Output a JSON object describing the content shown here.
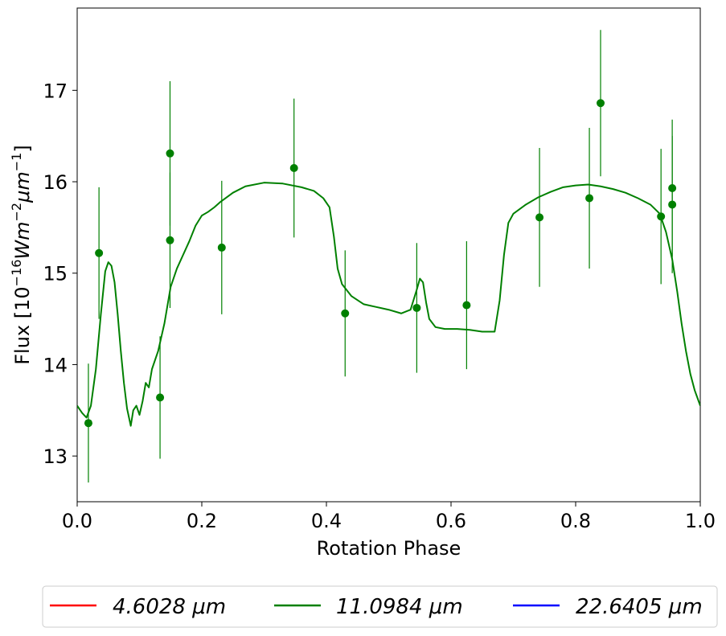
{
  "chart_data": {
    "type": "line",
    "xlabel": "Rotation Phase",
    "ylabel_prefix": "Flux [10",
    "ylabel_exp1": "−16",
    "ylabel_mid": "Wm",
    "ylabel_exp2": "−2",
    "ylabel_mid2": "μm",
    "ylabel_exp3": "−1",
    "ylabel_suffix": "]",
    "xlim": [
      0.0,
      1.0
    ],
    "ylim": [
      12.5,
      17.9
    ],
    "xticks": [
      0.0,
      0.2,
      0.4,
      0.6,
      0.8,
      1.0
    ],
    "xtick_labels": [
      "0.0",
      "0.2",
      "0.4",
      "0.6",
      "0.8",
      "1.0"
    ],
    "yticks": [
      13,
      14,
      15,
      16,
      17
    ],
    "ytick_labels": [
      "13",
      "14",
      "15",
      "16",
      "17"
    ],
    "grid": false,
    "legend_placement": "bottom-center",
    "legend": [
      {
        "label": "4.6028 μm",
        "color": "#ff0000"
      },
      {
        "label": "11.0984 μm",
        "color": "#008000"
      },
      {
        "label": "22.6405 μm",
        "color": "#0000ff"
      }
    ],
    "model_curve": {
      "name": "11.0984 μm",
      "color": "#008000",
      "points": [
        [
          0.0,
          13.55
        ],
        [
          0.008,
          13.47
        ],
        [
          0.015,
          13.42
        ],
        [
          0.022,
          13.55
        ],
        [
          0.03,
          13.95
        ],
        [
          0.038,
          14.55
        ],
        [
          0.045,
          15.02
        ],
        [
          0.05,
          15.12
        ],
        [
          0.055,
          15.08
        ],
        [
          0.06,
          14.9
        ],
        [
          0.065,
          14.55
        ],
        [
          0.07,
          14.15
        ],
        [
          0.075,
          13.8
        ],
        [
          0.08,
          13.52
        ],
        [
          0.086,
          13.33
        ],
        [
          0.09,
          13.5
        ],
        [
          0.095,
          13.55
        ],
        [
          0.1,
          13.45
        ],
        [
          0.105,
          13.6
        ],
        [
          0.11,
          13.8
        ],
        [
          0.115,
          13.75
        ],
        [
          0.12,
          13.95
        ],
        [
          0.125,
          14.05
        ],
        [
          0.13,
          14.15
        ],
        [
          0.135,
          14.3
        ],
        [
          0.14,
          14.45
        ],
        [
          0.145,
          14.65
        ],
        [
          0.15,
          14.85
        ],
        [
          0.16,
          15.05
        ],
        [
          0.17,
          15.2
        ],
        [
          0.18,
          15.35
        ],
        [
          0.19,
          15.52
        ],
        [
          0.2,
          15.63
        ],
        [
          0.21,
          15.67
        ],
        [
          0.22,
          15.72
        ],
        [
          0.23,
          15.78
        ],
        [
          0.25,
          15.88
        ],
        [
          0.27,
          15.95
        ],
        [
          0.3,
          15.99
        ],
        [
          0.33,
          15.98
        ],
        [
          0.36,
          15.94
        ],
        [
          0.38,
          15.9
        ],
        [
          0.395,
          15.82
        ],
        [
          0.405,
          15.72
        ],
        [
          0.412,
          15.4
        ],
        [
          0.418,
          15.05
        ],
        [
          0.425,
          14.88
        ],
        [
          0.44,
          14.75
        ],
        [
          0.46,
          14.66
        ],
        [
          0.48,
          14.63
        ],
        [
          0.5,
          14.6
        ],
        [
          0.52,
          14.56
        ],
        [
          0.535,
          14.6
        ],
        [
          0.545,
          14.82
        ],
        [
          0.55,
          14.94
        ],
        [
          0.555,
          14.9
        ],
        [
          0.56,
          14.68
        ],
        [
          0.565,
          14.5
        ],
        [
          0.575,
          14.41
        ],
        [
          0.59,
          14.39
        ],
        [
          0.61,
          14.39
        ],
        [
          0.63,
          14.38
        ],
        [
          0.65,
          14.36
        ],
        [
          0.67,
          14.36
        ],
        [
          0.678,
          14.7
        ],
        [
          0.685,
          15.2
        ],
        [
          0.692,
          15.55
        ],
        [
          0.7,
          15.65
        ],
        [
          0.72,
          15.75
        ],
        [
          0.74,
          15.83
        ],
        [
          0.76,
          15.89
        ],
        [
          0.78,
          15.94
        ],
        [
          0.8,
          15.96
        ],
        [
          0.82,
          15.97
        ],
        [
          0.84,
          15.95
        ],
        [
          0.86,
          15.92
        ],
        [
          0.88,
          15.88
        ],
        [
          0.9,
          15.82
        ],
        [
          0.92,
          15.75
        ],
        [
          0.935,
          15.65
        ],
        [
          0.945,
          15.45
        ],
        [
          0.955,
          15.15
        ],
        [
          0.963,
          14.8
        ],
        [
          0.97,
          14.45
        ],
        [
          0.977,
          14.15
        ],
        [
          0.984,
          13.9
        ],
        [
          0.991,
          13.72
        ],
        [
          1.0,
          13.55
        ]
      ]
    },
    "observations": {
      "name": "11.0984 μm",
      "color": "#008000",
      "points": [
        {
          "x": 0.018,
          "y": 13.36,
          "err": 0.65
        },
        {
          "x": 0.035,
          "y": 15.22,
          "err": 0.72
        },
        {
          "x": 0.133,
          "y": 13.64,
          "err": 0.67
        },
        {
          "x": 0.149,
          "y": 16.31,
          "err": 0.79
        },
        {
          "x": 0.149,
          "y": 15.36,
          "err": 0.74
        },
        {
          "x": 0.232,
          "y": 15.28,
          "err": 0.73
        },
        {
          "x": 0.348,
          "y": 16.15,
          "err": 0.76
        },
        {
          "x": 0.43,
          "y": 14.56,
          "err": 0.69
        },
        {
          "x": 0.545,
          "y": 14.62,
          "err": 0.71
        },
        {
          "x": 0.625,
          "y": 14.65,
          "err": 0.7
        },
        {
          "x": 0.742,
          "y": 15.61,
          "err": 0.76
        },
        {
          "x": 0.822,
          "y": 15.82,
          "err": 0.77
        },
        {
          "x": 0.84,
          "y": 16.86,
          "err": 0.8
        },
        {
          "x": 0.937,
          "y": 15.62,
          "err": 0.74
        },
        {
          "x": 0.955,
          "y": 15.93,
          "err": 0.75
        },
        {
          "x": 0.955,
          "y": 15.75,
          "err": 0.75
        }
      ]
    }
  }
}
